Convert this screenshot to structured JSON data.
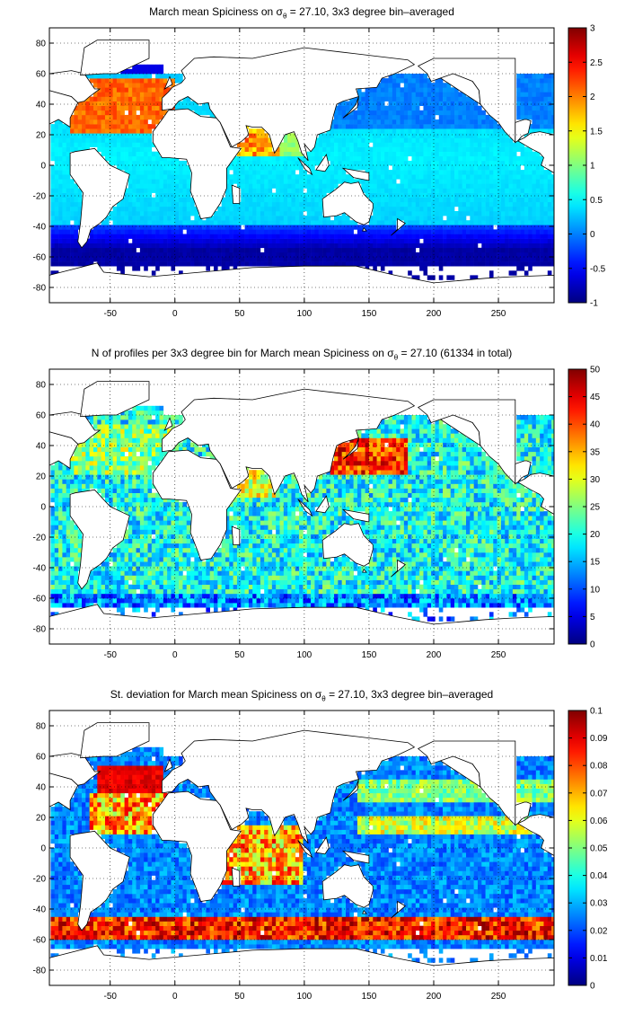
{
  "chart_data": [
    {
      "type": "heatmap",
      "title_main": "March mean Spiciness on σ",
      "title_sub": "θ",
      "title_rest": " = 27.10, 3x3 degree bin–averaged",
      "xticks": [
        "-50",
        "0",
        "50",
        "100",
        "150",
        "200",
        "250"
      ],
      "yticks": [
        "80",
        "60",
        "40",
        "20",
        "0",
        "-20",
        "-40",
        "-60",
        "-80"
      ],
      "xlim": [
        -97,
        293
      ],
      "ylim": [
        -90,
        90
      ],
      "colorbar": {
        "colormap": "jet",
        "min": -1,
        "max": 3,
        "ticks": [
          "3",
          "2.5",
          "2",
          "1.5",
          "1",
          "0.5",
          "0",
          "-0.5",
          "-1"
        ]
      },
      "grid": true,
      "background": "#ffffff",
      "field": "spiciness"
    },
    {
      "type": "heatmap",
      "title_main": "N of profiles per 3x3 degree bin for March mean Spiciness on σ",
      "title_sub": "θ",
      "title_rest": " = 27.10 (61334 in total)",
      "xticks": [
        "-50",
        "0",
        "50",
        "100",
        "150",
        "200",
        "250"
      ],
      "yticks": [
        "80",
        "60",
        "40",
        "20",
        "0",
        "-20",
        "-40",
        "-60",
        "-80"
      ],
      "xlim": [
        -97,
        293
      ],
      "ylim": [
        -90,
        90
      ],
      "colorbar": {
        "colormap": "jet",
        "min": 0,
        "max": 50,
        "ticks": [
          "50",
          "45",
          "40",
          "35",
          "30",
          "25",
          "20",
          "15",
          "10",
          "5",
          "0"
        ]
      },
      "grid": true,
      "background": "#ffffff",
      "field": "count"
    },
    {
      "type": "heatmap",
      "title_main": "St. deviation for March mean Spiciness on σ",
      "title_sub": "θ",
      "title_rest": " = 27.10, 3x3 degree bin–averaged",
      "xticks": [
        "-50",
        "0",
        "50",
        "100",
        "150",
        "200",
        "250"
      ],
      "yticks": [
        "80",
        "60",
        "40",
        "20",
        "0",
        "-20",
        "-40",
        "-60",
        "-80"
      ],
      "xlim": [
        -97,
        293
      ],
      "ylim": [
        -90,
        90
      ],
      "colorbar": {
        "colormap": "jet",
        "min": 0,
        "max": 0.1,
        "ticks": [
          "0.1",
          "0.09",
          "0.08",
          "0.07",
          "0.06",
          "0.05",
          "0.04",
          "0.03",
          "0.02",
          "0.01",
          "0"
        ]
      },
      "grid": true,
      "background": "#ffffff",
      "field": "stdev"
    }
  ]
}
